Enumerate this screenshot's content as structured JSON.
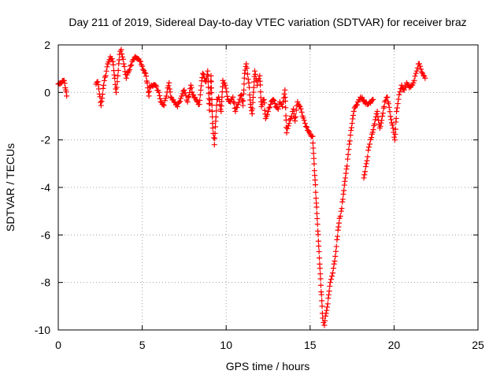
{
  "chart_data": {
    "type": "scatter",
    "title": "Day 211 of 2019, Sidereal Day-to-day VTEC variation (SDTVAR) for receiver braz",
    "xlabel": "GPS time / hours",
    "ylabel": "SDTVAR / TECUs",
    "xlim": [
      0,
      25
    ],
    "ylim": [
      -10,
      2
    ],
    "xticks": [
      0,
      5,
      10,
      15,
      20,
      25
    ],
    "yticks": [
      -10,
      -8,
      -6,
      -4,
      -2,
      0,
      2
    ],
    "xtick_labels": [
      "0",
      "5",
      "10",
      "15",
      "20",
      "25"
    ],
    "ytick_labels": [
      "-10",
      "-8",
      "-6",
      "-4",
      "-2",
      "0",
      "2"
    ],
    "grid": true,
    "marker": "+",
    "series_color": "#ff0000",
    "trace": [
      [
        0.0,
        0.35
      ],
      [
        0.2,
        0.4
      ],
      [
        0.35,
        0.5
      ],
      [
        0.45,
        0.1
      ],
      [
        0.5,
        -0.15
      ],
      [
        2.25,
        0.35
      ],
      [
        2.35,
        0.45
      ],
      [
        2.55,
        -0.55
      ],
      [
        2.7,
        0.3
      ],
      [
        2.95,
        1.2
      ],
      [
        3.1,
        1.5
      ],
      [
        3.25,
        1.3
      ],
      [
        3.45,
        0.0
      ],
      [
        3.55,
        0.7
      ],
      [
        3.65,
        1.6
      ],
      [
        3.75,
        1.8
      ],
      [
        3.9,
        1.2
      ],
      [
        4.05,
        0.6
      ],
      [
        4.2,
        0.9
      ],
      [
        4.4,
        1.3
      ],
      [
        4.6,
        1.5
      ],
      [
        4.8,
        1.4
      ],
      [
        5.0,
        1.1
      ],
      [
        5.2,
        0.8
      ],
      [
        5.3,
        0.4
      ],
      [
        5.4,
        -0.15
      ],
      [
        5.45,
        0.25
      ],
      [
        5.8,
        0.3
      ],
      [
        6.0,
        0.0
      ],
      [
        6.1,
        -0.4
      ],
      [
        6.3,
        -0.55
      ],
      [
        6.4,
        -0.25
      ],
      [
        6.6,
        0.4
      ],
      [
        6.7,
        -0.2
      ],
      [
        6.9,
        -0.4
      ],
      [
        7.1,
        -0.6
      ],
      [
        7.3,
        -0.25
      ],
      [
        7.5,
        0.1
      ],
      [
        7.7,
        -0.4
      ],
      [
        7.9,
        0.3
      ],
      [
        8.0,
        -0.1
      ],
      [
        8.2,
        -0.3
      ],
      [
        8.4,
        -0.5
      ],
      [
        8.6,
        0.8
      ],
      [
        8.8,
        0.45
      ],
      [
        8.9,
        0.9
      ],
      [
        9.0,
        -0.75
      ],
      [
        9.1,
        0.7
      ],
      [
        9.2,
        -1.5
      ],
      [
        9.3,
        -2.2
      ],
      [
        9.45,
        -0.3
      ],
      [
        9.55,
        -0.2
      ],
      [
        9.7,
        -0.8
      ],
      [
        9.8,
        0.5
      ],
      [
        9.95,
        0.3
      ],
      [
        10.1,
        -0.3
      ],
      [
        10.25,
        -0.4
      ],
      [
        10.4,
        -0.2
      ],
      [
        10.55,
        -0.8
      ],
      [
        10.7,
        -0.5
      ],
      [
        10.9,
        -0.1
      ],
      [
        11.0,
        -0.55
      ],
      [
        11.1,
        0.8
      ],
      [
        11.2,
        1.2
      ],
      [
        11.35,
        0.4
      ],
      [
        11.45,
        -0.5
      ],
      [
        11.55,
        -0.9
      ],
      [
        11.7,
        0.9
      ],
      [
        11.85,
        0.3
      ],
      [
        12.0,
        0.7
      ],
      [
        12.1,
        -0.6
      ],
      [
        12.25,
        -0.3
      ],
      [
        12.35,
        -1.1
      ],
      [
        12.5,
        -0.8
      ],
      [
        12.65,
        -0.5
      ],
      [
        12.8,
        -0.3
      ],
      [
        12.95,
        -0.6
      ],
      [
        13.1,
        -0.7
      ],
      [
        13.2,
        -0.4
      ],
      [
        13.35,
        -0.6
      ],
      [
        13.5,
        0.1
      ],
      [
        13.6,
        -1.7
      ],
      [
        13.75,
        -1.3
      ],
      [
        13.9,
        -1.0
      ],
      [
        14.0,
        -0.7
      ],
      [
        14.1,
        -1.2
      ],
      [
        14.25,
        -0.4
      ],
      [
        14.4,
        -0.6
      ],
      [
        14.55,
        -1.0
      ],
      [
        14.7,
        -1.3
      ],
      [
        14.85,
        -1.6
      ],
      [
        15.0,
        -1.75
      ],
      [
        15.15,
        -1.85
      ],
      [
        15.75,
        -9.5
      ],
      [
        15.85,
        -9.8
      ],
      [
        15.95,
        -9.3
      ],
      [
        16.05,
        -8.9
      ],
      [
        16.2,
        -8.0
      ],
      [
        16.35,
        -7.6
      ],
      [
        16.5,
        -6.9
      ],
      [
        16.6,
        -6.2
      ],
      [
        16.75,
        -5.3
      ],
      [
        16.85,
        -5.0
      ],
      [
        16.95,
        -4.5
      ],
      [
        17.1,
        -3.6
      ],
      [
        17.2,
        -3.1
      ],
      [
        17.3,
        -2.4
      ],
      [
        17.4,
        -1.8
      ],
      [
        17.5,
        -1.3
      ],
      [
        17.6,
        -0.8
      ],
      [
        17.7,
        -0.6
      ],
      [
        17.85,
        -0.4
      ],
      [
        18.0,
        -0.2
      ],
      [
        18.2,
        -0.35
      ],
      [
        18.4,
        -0.5
      ],
      [
        18.6,
        -0.45
      ],
      [
        18.75,
        -0.3
      ],
      [
        18.2,
        -3.6
      ],
      [
        18.35,
        -3.0
      ],
      [
        18.5,
        -2.3
      ],
      [
        18.65,
        -1.9
      ],
      [
        18.8,
        -1.4
      ],
      [
        19.0,
        -0.8
      ],
      [
        19.15,
        -1.5
      ],
      [
        19.3,
        -1.0
      ],
      [
        19.45,
        -0.4
      ],
      [
        19.6,
        -0.2
      ],
      [
        20.05,
        -2.0
      ],
      [
        20.15,
        -0.8
      ],
      [
        20.3,
        -0.1
      ],
      [
        20.45,
        0.3
      ],
      [
        20.6,
        0.1
      ],
      [
        20.75,
        0.4
      ],
      [
        20.9,
        0.2
      ],
      [
        21.05,
        0.3
      ],
      [
        21.2,
        0.5
      ],
      [
        21.35,
        0.9
      ],
      [
        21.45,
        1.2
      ],
      [
        21.55,
        1.1
      ],
      [
        21.7,
        0.8
      ],
      [
        21.85,
        0.6
      ]
    ]
  }
}
